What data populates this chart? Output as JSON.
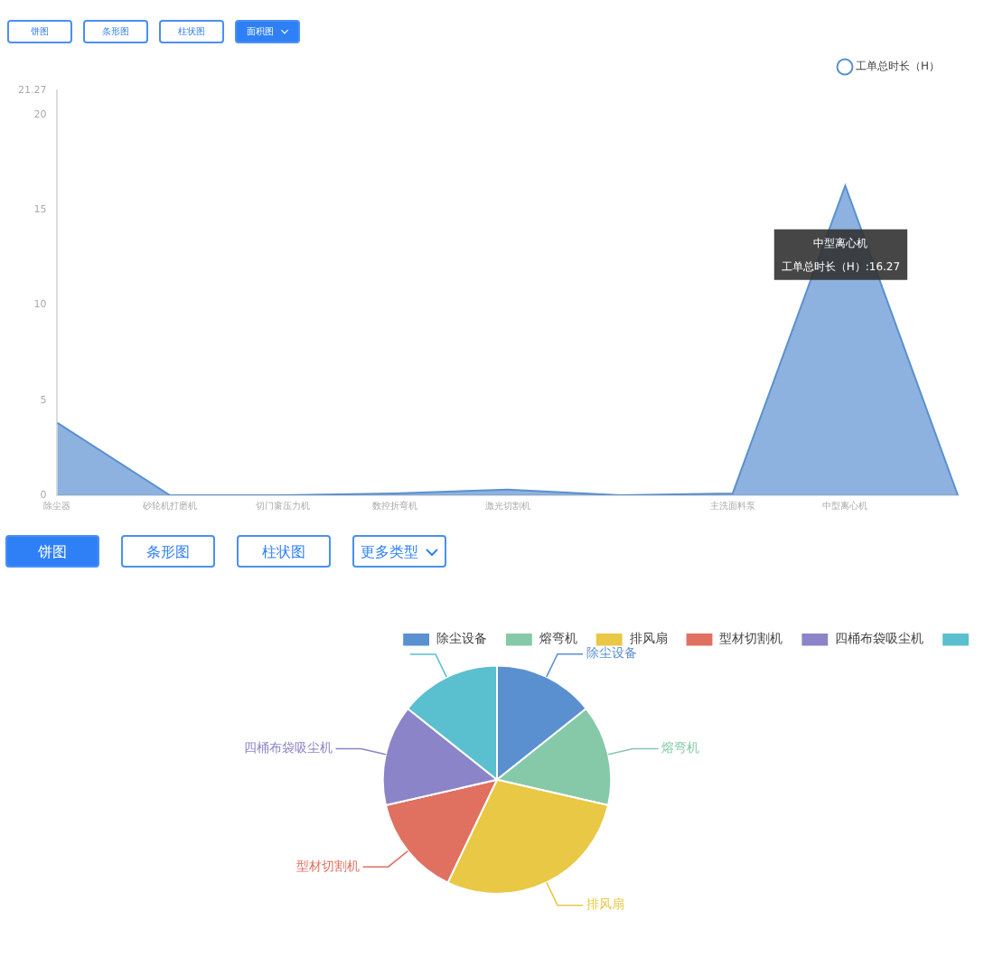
{
  "chart_data": [
    {
      "type": "area",
      "categories": [
        "除尘器",
        "砂轮机打磨机",
        "切门窗压力机",
        "数控折弯机",
        "激光切割机",
        null,
        "主洗面料泵",
        "中型离心机",
        null
      ],
      "series": [
        {
          "name": "工单总时长（H）",
          "color": "#5b90d0",
          "values": [
            3.8,
            0,
            0,
            0.1,
            0.3,
            0,
            0.1,
            16.27,
            0
          ]
        }
      ],
      "ylim": [
        0,
        21.27
      ],
      "yticks": [
        0,
        5,
        10,
        15,
        20,
        21.27
      ],
      "grid": false,
      "legend": "top right",
      "annotations": [
        "饼图",
        "条形图",
        "柱状图",
        "面积图",
        "中型离心机",
        "工单总时长（H）:16.27"
      ]
    },
    {
      "type": "pie",
      "categories": [
        "除尘设备",
        "熔弯机",
        "排风扇",
        "型材切割机",
        "四桶布袋吸尘机",
        null
      ],
      "values": [
        14.3,
        14.3,
        28.5,
        14.3,
        14.3,
        14.3
      ],
      "colors": [
        "#5b90d0",
        "#85c9a9",
        "#e8c844",
        "#e07060",
        "#8b84c8",
        "#5abfcf"
      ],
      "legend": "top right",
      "annotations": [
        "饼图",
        "条形图",
        "柱状图",
        "更多类型"
      ]
    }
  ]
}
